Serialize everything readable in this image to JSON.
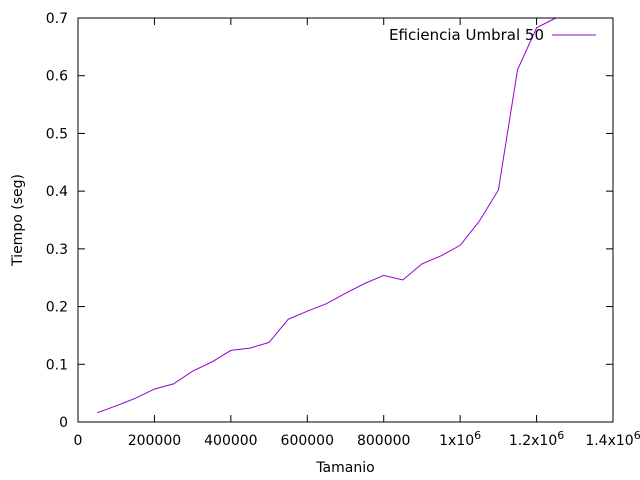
{
  "chart_data": {
    "type": "line",
    "title": "",
    "xlabel": "Tamanio",
    "ylabel": "Tiempo (seg)",
    "xlim": [
      0,
      1400000
    ],
    "ylim": [
      0,
      0.7
    ],
    "x_ticks": [
      {
        "value": 0,
        "label": "0"
      },
      {
        "value": 200000,
        "label": "200000"
      },
      {
        "value": 400000,
        "label": "400000"
      },
      {
        "value": 600000,
        "label": "600000"
      },
      {
        "value": 800000,
        "label": "800000"
      },
      {
        "value": 1000000,
        "label": "1x10",
        "sup": "6"
      },
      {
        "value": 1200000,
        "label": "1.2x10",
        "sup": "6"
      },
      {
        "value": 1400000,
        "label": "1.4x10",
        "sup": "6"
      }
    ],
    "y_ticks": [
      {
        "value": 0,
        "label": "0"
      },
      {
        "value": 0.1,
        "label": "0.1"
      },
      {
        "value": 0.2,
        "label": "0.2"
      },
      {
        "value": 0.3,
        "label": "0.3"
      },
      {
        "value": 0.4,
        "label": "0.4"
      },
      {
        "value": 0.5,
        "label": "0.5"
      },
      {
        "value": 0.6,
        "label": "0.6"
      },
      {
        "value": 0.7,
        "label": "0.7"
      }
    ],
    "grid": false,
    "legend_position": "top-right",
    "series": [
      {
        "name": "Eficiencia Umbral 50",
        "color": "#9400d3",
        "x": [
          50000,
          100000,
          150000,
          200000,
          250000,
          300000,
          350000,
          400000,
          450000,
          500000,
          550000,
          600000,
          650000,
          700000,
          750000,
          800000,
          850000,
          900000,
          950000,
          1000000,
          1050000,
          1100000,
          1150000,
          1200000,
          1250000
        ],
        "y": [
          0.016,
          0.028,
          0.041,
          0.057,
          0.066,
          0.088,
          0.104,
          0.124,
          0.128,
          0.138,
          0.178,
          0.192,
          0.205,
          0.223,
          0.24,
          0.254,
          0.246,
          0.274,
          0.288,
          0.306,
          0.348,
          0.402,
          0.61,
          0.683,
          0.7
        ]
      }
    ]
  }
}
